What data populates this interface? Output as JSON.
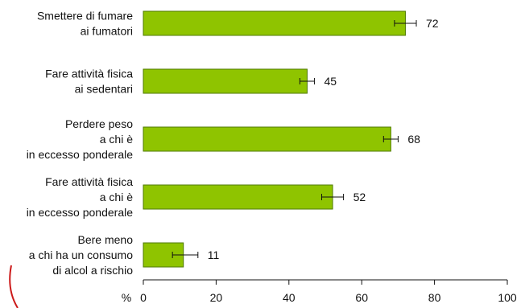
{
  "chart_data": {
    "type": "bar",
    "orientation": "horizontal",
    "categories": [
      [
        "Smettere di fumare",
        "ai fumatori"
      ],
      [
        "Fare attività fisica",
        "ai sedentari"
      ],
      [
        "Perdere peso",
        "a chi è",
        "in eccesso ponderale"
      ],
      [
        "Fare attività fisica",
        "a chi è",
        "in eccesso ponderale"
      ],
      [
        "Bere meno",
        "a chi ha un consumo",
        "di alcol a rischio"
      ]
    ],
    "values": [
      72,
      45,
      68,
      52,
      11
    ],
    "error_bars": [
      [
        69,
        75
      ],
      [
        43,
        47
      ],
      [
        66,
        70
      ],
      [
        49,
        55
      ],
      [
        8,
        15
      ]
    ],
    "data_labels": [
      "72",
      "45",
      "68",
      "52",
      "11"
    ],
    "xlim": [
      0,
      100
    ],
    "x_ticks": [
      0,
      20,
      40,
      60,
      80,
      100
    ],
    "x_unit_label": "%",
    "bar_color": "#8fc400",
    "bar_border_color": "#4f7a00",
    "grid": false,
    "legend": "none"
  }
}
